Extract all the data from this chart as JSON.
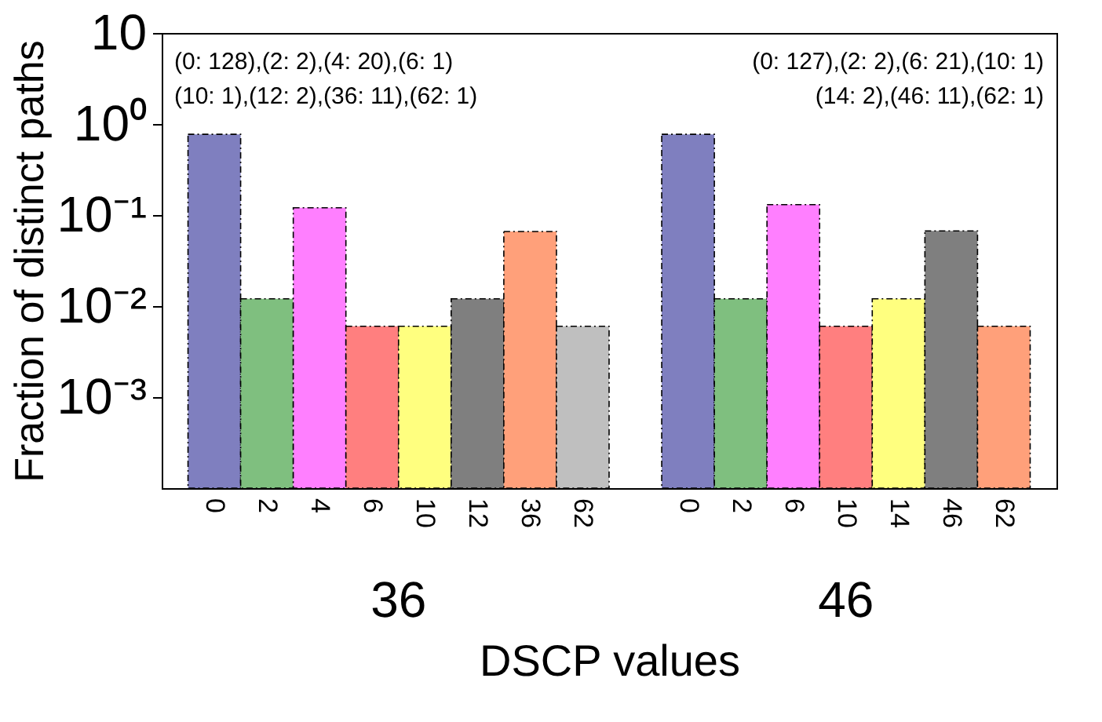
{
  "chart_data": {
    "type": "bar",
    "xlabel": "DSCP values",
    "ylabel": "Fraction of distinct paths",
    "categories": [
      "0",
      "2",
      "4",
      "6",
      "10",
      "12",
      "36",
      "62",
      null,
      "0",
      "2",
      "6",
      "10",
      "14",
      "46",
      "62"
    ],
    "values": [
      0.77,
      0.012,
      0.12,
      0.006,
      0.006,
      0.012,
      0.066,
      0.006,
      null,
      0.77,
      0.012,
      0.13,
      0.006,
      0.012,
      0.067,
      0.006
    ],
    "colors": [
      "#7f7fbf",
      "#7fbf7f",
      "#ff7fff",
      "#ff7f7f",
      "#ffff7f",
      "#7f7f7f",
      "#ffa07a",
      "#bfbfbf",
      null,
      "#7f7fbf",
      "#7fbf7f",
      "#ff7fff",
      "#ff7f7f",
      "#ffff7f",
      "#7f7f7f",
      "#ffa07a"
    ],
    "log": "y",
    "ylim": [
      0.0001,
      10
    ],
    "yticks": [
      10,
      {
        "value": 1,
        "label": "10⁰"
      },
      {
        "value": 0.1,
        "label": "10⁻¹"
      },
      {
        "value": 0.01,
        "label": "10⁻²"
      },
      {
        "value": 0.001,
        "label": "10⁻³"
      }
    ],
    "grid": false,
    "annotations": [
      "(0: 128),(2: 2),(4: 20),(6: 1)",
      "(10: 1),(12: 2),(36: 11),(62: 1)",
      "(0: 127),(2: 2),(6: 21),(10: 1)",
      "(14: 2),(46: 11),(62: 1)",
      "36",
      "46"
    ]
  }
}
